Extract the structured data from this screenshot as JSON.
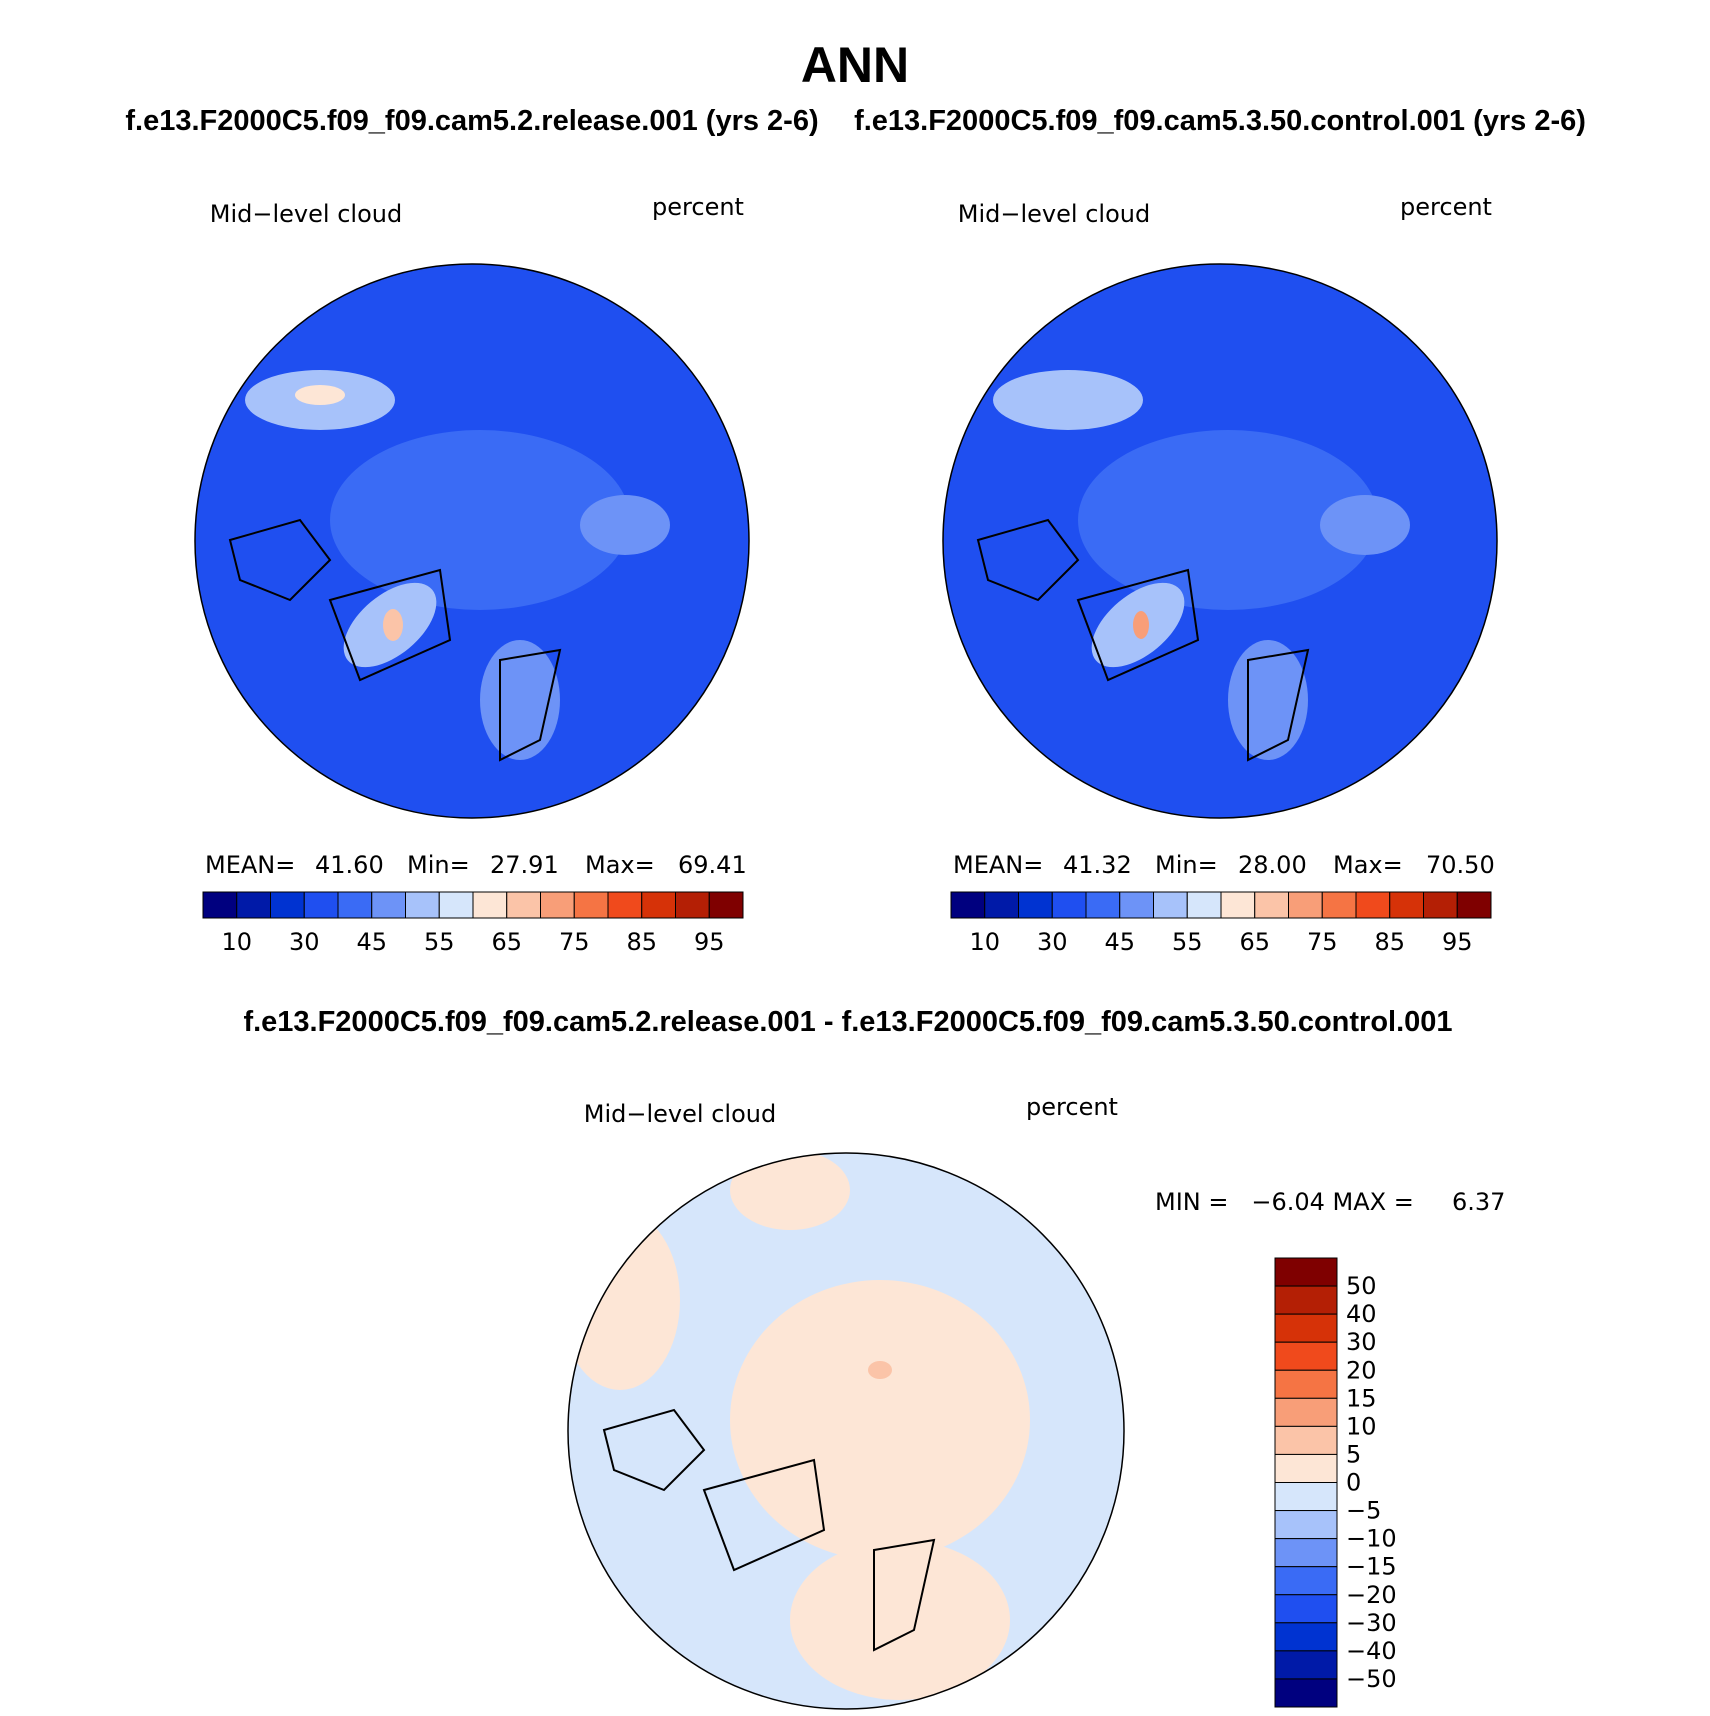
{
  "title": "ANN",
  "panels": [
    {
      "case": "f.e13.F2000C5.f09_f09.cam5.2.release.001 (yrs 2-6)",
      "variable": "Mid−level cloud",
      "units": "percent",
      "stats": [
        "MEAN=",
        "41.60",
        "Min=",
        "27.91",
        "Max=",
        "69.41"
      ],
      "colorbar": {
        "colors": [
          "#00007f",
          "#001aa8",
          "#0033d1",
          "#1f4ff0",
          "#3a6bf5",
          "#6d93f7",
          "#a7c2fa",
          "#d6e6fb",
          "#fde6d6",
          "#fbc4a8",
          "#f89e78",
          "#f57444",
          "#f04a1c",
          "#d63208",
          "#b41f05",
          "#7f0000"
        ],
        "labels": [
          "10",
          "30",
          "45",
          "55",
          "65",
          "75",
          "85",
          "95"
        ]
      }
    },
    {
      "case": "f.e13.F2000C5.f09_f09.cam5.3.50.control.001 (yrs 2-6)",
      "variable": "Mid−level cloud",
      "units": "percent",
      "stats": [
        "MEAN=",
        "41.32",
        "Min=",
        "28.00",
        "Max=",
        "70.50"
      ],
      "colorbar": {
        "colors": [
          "#00007f",
          "#001aa8",
          "#0033d1",
          "#1f4ff0",
          "#3a6bf5",
          "#6d93f7",
          "#a7c2fa",
          "#d6e6fb",
          "#fde6d6",
          "#fbc4a8",
          "#f89e78",
          "#f57444",
          "#f04a1c",
          "#d63208",
          "#b41f05",
          "#7f0000"
        ],
        "labels": [
          "10",
          "30",
          "45",
          "55",
          "65",
          "75",
          "85",
          "95"
        ]
      }
    }
  ],
  "difference": {
    "title": "f.e13.F2000C5.f09_f09.cam5.2.release.001 - f.e13.F2000C5.f09_f09.cam5.3.50.control.001",
    "variable": "Mid−level cloud",
    "units": "percent",
    "stats": "MIN =   −6.04 MAX =     6.37",
    "colorbar": {
      "colors": [
        "#7f0000",
        "#b41f05",
        "#d63208",
        "#f04a1c",
        "#f57444",
        "#f89e78",
        "#fbc4a8",
        "#fde6d6",
        "#d6e6fb",
        "#a7c2fa",
        "#6d93f7",
        "#3a6bf5",
        "#1f4ff0",
        "#0033d1",
        "#001aa8",
        "#00007f"
      ],
      "labels": [
        "50",
        "40",
        "30",
        "20",
        "15",
        "10",
        "5",
        "0",
        "−5",
        "−10",
        "−15",
        "−20",
        "−30",
        "−40",
        "−50"
      ]
    }
  }
}
